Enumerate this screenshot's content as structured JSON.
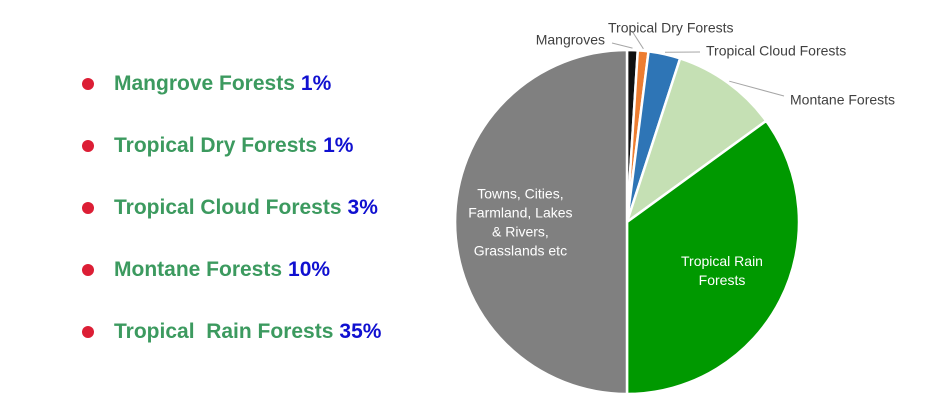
{
  "legend": {
    "bullet_color": "#dc1e35",
    "name_color": "#3c9a5f",
    "pct_color": "#1010d0",
    "items": [
      {
        "name": "Mangrove Forests",
        "pct": "1%"
      },
      {
        "name": "Tropical Dry Forests",
        "pct": "1%"
      },
      {
        "name": "Tropical Cloud Forests",
        "pct": "3%"
      },
      {
        "name": "Montane Forests",
        "pct": "10%"
      },
      {
        "name": "Tropical  Rain Forests",
        "pct": "35%"
      }
    ]
  },
  "chart_data": {
    "type": "pie",
    "slices": [
      {
        "label": "Mangroves",
        "value": 1,
        "color": "#111111"
      },
      {
        "label": "Tropical Dry Forests",
        "value": 1,
        "color": "#ed7d31"
      },
      {
        "label": "Tropical Cloud Forests",
        "value": 3,
        "color": "#2e75b6"
      },
      {
        "label": "Montane Forests",
        "value": 10,
        "color": "#c5e0b4"
      },
      {
        "label": "Tropical Rain Forests",
        "value": 35,
        "color": "#009900",
        "label_lines": [
          "Tropical Rain",
          "Forests"
        ],
        "label_color": "#ffffff"
      },
      {
        "label": "Towns, Cities, Farmland, Lakes & Rivers, Grasslands etc",
        "value": 50,
        "color": "#808080",
        "label_lines": [
          "Towns, Cities,",
          "Farmland, Lakes",
          "& Rivers,",
          "Grasslands etc"
        ],
        "label_color": "#ffffff"
      }
    ]
  }
}
